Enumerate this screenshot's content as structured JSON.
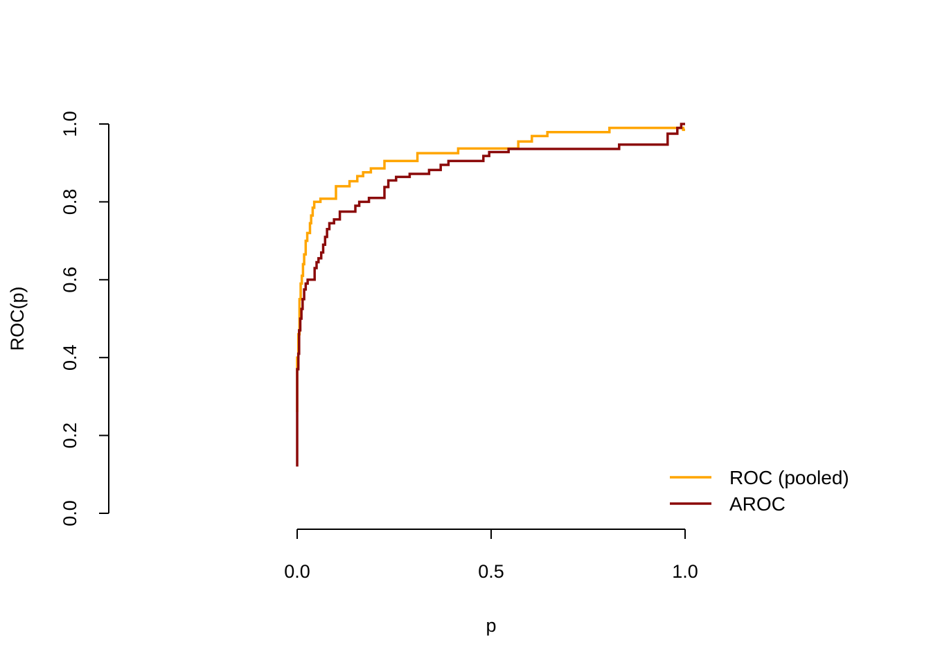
{
  "chart_data": {
    "type": "line",
    "title": "",
    "xlabel": "p",
    "ylabel": "ROC(p)",
    "xlim": [
      0,
      1
    ],
    "ylim": [
      0,
      1
    ],
    "xticks": [
      "0.0",
      "0.5",
      "1.0"
    ],
    "yticks": [
      "0.0",
      "0.2",
      "0.4",
      "0.6",
      "0.8",
      "1.0"
    ],
    "grid": false,
    "legend_position": "bottom-right",
    "series": [
      {
        "name": "ROC (pooled)",
        "color": "#FFA500",
        "points": [
          [
            0,
            0.26
          ],
          [
            0,
            0.4
          ],
          [
            0.003,
            0.4
          ],
          [
            0.003,
            0.46
          ],
          [
            0.006,
            0.46
          ],
          [
            0.006,
            0.55
          ],
          [
            0.009,
            0.55
          ],
          [
            0.009,
            0.59
          ],
          [
            0.012,
            0.59
          ],
          [
            0.012,
            0.61
          ],
          [
            0.015,
            0.61
          ],
          [
            0.015,
            0.64
          ],
          [
            0.018,
            0.64
          ],
          [
            0.018,
            0.665
          ],
          [
            0.022,
            0.665
          ],
          [
            0.022,
            0.7
          ],
          [
            0.026,
            0.7
          ],
          [
            0.026,
            0.72
          ],
          [
            0.033,
            0.72
          ],
          [
            0.033,
            0.745
          ],
          [
            0.036,
            0.745
          ],
          [
            0.036,
            0.765
          ],
          [
            0.04,
            0.765
          ],
          [
            0.04,
            0.785
          ],
          [
            0.044,
            0.785
          ],
          [
            0.044,
            0.8
          ],
          [
            0.06,
            0.8
          ],
          [
            0.06,
            0.808
          ],
          [
            0.1,
            0.808
          ],
          [
            0.1,
            0.84
          ],
          [
            0.135,
            0.84
          ],
          [
            0.135,
            0.853
          ],
          [
            0.155,
            0.853
          ],
          [
            0.155,
            0.866
          ],
          [
            0.17,
            0.866
          ],
          [
            0.17,
            0.876
          ],
          [
            0.19,
            0.876
          ],
          [
            0.19,
            0.886
          ],
          [
            0.225,
            0.886
          ],
          [
            0.225,
            0.905
          ],
          [
            0.31,
            0.905
          ],
          [
            0.31,
            0.925
          ],
          [
            0.415,
            0.925
          ],
          [
            0.415,
            0.937
          ],
          [
            0.57,
            0.937
          ],
          [
            0.57,
            0.955
          ],
          [
            0.605,
            0.955
          ],
          [
            0.605,
            0.969
          ],
          [
            0.645,
            0.969
          ],
          [
            0.645,
            0.979
          ],
          [
            0.805,
            0.979
          ],
          [
            0.805,
            0.99
          ],
          [
            0.995,
            0.99
          ],
          [
            0.995,
            0.985
          ],
          [
            1.0,
            0.985
          ]
        ]
      },
      {
        "name": "AROC",
        "color": "#8B0A0A",
        "points": [
          [
            0,
            0.12
          ],
          [
            0,
            0.37
          ],
          [
            0.003,
            0.37
          ],
          [
            0.003,
            0.41
          ],
          [
            0.005,
            0.41
          ],
          [
            0.005,
            0.47
          ],
          [
            0.008,
            0.47
          ],
          [
            0.008,
            0.5
          ],
          [
            0.011,
            0.5
          ],
          [
            0.011,
            0.525
          ],
          [
            0.014,
            0.525
          ],
          [
            0.014,
            0.55
          ],
          [
            0.018,
            0.55
          ],
          [
            0.018,
            0.575
          ],
          [
            0.022,
            0.575
          ],
          [
            0.022,
            0.59
          ],
          [
            0.027,
            0.59
          ],
          [
            0.027,
            0.6
          ],
          [
            0.045,
            0.6
          ],
          [
            0.045,
            0.63
          ],
          [
            0.05,
            0.63
          ],
          [
            0.05,
            0.645
          ],
          [
            0.055,
            0.645
          ],
          [
            0.055,
            0.655
          ],
          [
            0.062,
            0.655
          ],
          [
            0.062,
            0.67
          ],
          [
            0.067,
            0.67
          ],
          [
            0.067,
            0.69
          ],
          [
            0.072,
            0.69
          ],
          [
            0.072,
            0.71
          ],
          [
            0.077,
            0.71
          ],
          [
            0.077,
            0.73
          ],
          [
            0.083,
            0.73
          ],
          [
            0.083,
            0.745
          ],
          [
            0.095,
            0.745
          ],
          [
            0.095,
            0.755
          ],
          [
            0.11,
            0.755
          ],
          [
            0.11,
            0.775
          ],
          [
            0.15,
            0.775
          ],
          [
            0.15,
            0.79
          ],
          [
            0.16,
            0.79
          ],
          [
            0.16,
            0.8
          ],
          [
            0.185,
            0.8
          ],
          [
            0.185,
            0.81
          ],
          [
            0.225,
            0.81
          ],
          [
            0.225,
            0.838
          ],
          [
            0.235,
            0.838
          ],
          [
            0.235,
            0.855
          ],
          [
            0.255,
            0.855
          ],
          [
            0.255,
            0.864
          ],
          [
            0.29,
            0.864
          ],
          [
            0.29,
            0.872
          ],
          [
            0.34,
            0.872
          ],
          [
            0.34,
            0.882
          ],
          [
            0.37,
            0.882
          ],
          [
            0.37,
            0.895
          ],
          [
            0.39,
            0.895
          ],
          [
            0.39,
            0.905
          ],
          [
            0.48,
            0.905
          ],
          [
            0.48,
            0.918
          ],
          [
            0.495,
            0.918
          ],
          [
            0.495,
            0.928
          ],
          [
            0.545,
            0.928
          ],
          [
            0.545,
            0.936
          ],
          [
            0.83,
            0.936
          ],
          [
            0.83,
            0.947
          ],
          [
            0.955,
            0.947
          ],
          [
            0.955,
            0.975
          ],
          [
            0.98,
            0.975
          ],
          [
            0.98,
            0.99
          ],
          [
            0.99,
            0.99
          ],
          [
            0.99,
            1.0
          ],
          [
            1.0,
            1.0
          ]
        ]
      }
    ]
  }
}
